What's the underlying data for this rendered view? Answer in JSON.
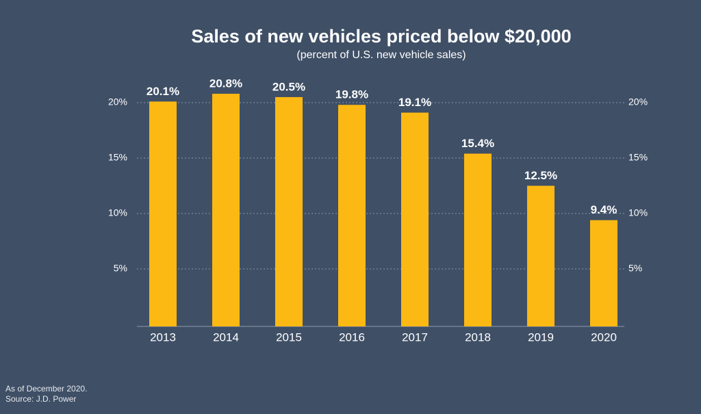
{
  "chart_data": {
    "type": "bar",
    "title": "Sales of new vehicles priced below $20,000",
    "subtitle": "(percent of U.S. new vehicle sales)",
    "categories": [
      "2013",
      "2014",
      "2015",
      "2016",
      "2017",
      "2018",
      "2019",
      "2020"
    ],
    "values": [
      20.1,
      20.8,
      20.5,
      19.8,
      19.1,
      15.4,
      12.5,
      9.4
    ],
    "value_labels": [
      "20.1%",
      "20.8%",
      "20.5%",
      "19.8%",
      "19.1%",
      "15.4%",
      "12.5%",
      "9.4%"
    ],
    "color": "#fdb913",
    "ylim": [
      0,
      22
    ],
    "yticks": [
      {
        "value": 5,
        "label": "5%"
      },
      {
        "value": 10,
        "label": "10%"
      },
      {
        "value": 15,
        "label": "15%"
      },
      {
        "value": 20,
        "label": "20%"
      }
    ],
    "grid": true,
    "notes": [
      "As of December 2020.",
      "Source: J.D. Power"
    ]
  }
}
